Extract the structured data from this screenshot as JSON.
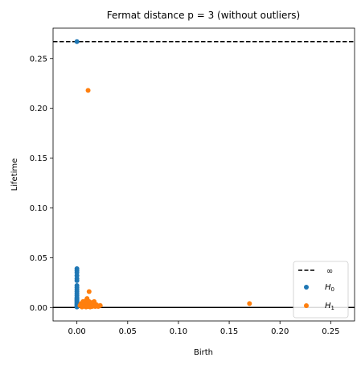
{
  "chart_data": {
    "type": "scatter",
    "title": "Fermat distance p = 3 (without outliers)",
    "xlabel": "Birth",
    "ylabel": "Lifetime",
    "xlim": [
      -0.0235,
      0.2735
    ],
    "ylim": [
      -0.0135,
      0.2805
    ],
    "xticks": [
      "0.00",
      "0.05",
      "0.10",
      "0.15",
      "0.20",
      "0.25"
    ],
    "xtick_values": [
      0,
      0.05,
      0.1,
      0.15,
      0.2,
      0.25
    ],
    "yticks": [
      "0.00",
      "0.05",
      "0.10",
      "0.15",
      "0.20",
      "0.25"
    ],
    "ytick_values": [
      0,
      0.05,
      0.1,
      0.15,
      0.2,
      0.25
    ],
    "infinity_line": {
      "y": 0.267,
      "label": "∞",
      "style": "dashed",
      "color": "#000000"
    },
    "baseline": {
      "y": 0,
      "color": "#000000"
    },
    "legend": {
      "placement": "lower-right"
    },
    "series": [
      {
        "name": "H0",
        "name_base": "H",
        "name_sub": "0",
        "color": "#1f77b4",
        "points": [
          [
            0,
            0.267
          ],
          [
            0,
            0.039
          ],
          [
            0,
            0.037
          ],
          [
            0,
            0.035
          ],
          [
            0,
            0.032
          ],
          [
            0,
            0.029
          ],
          [
            0,
            0.027
          ],
          [
            0,
            0.022
          ],
          [
            0,
            0.02
          ],
          [
            0,
            0.018
          ],
          [
            0,
            0.016
          ],
          [
            0,
            0.014
          ],
          [
            0,
            0.012
          ],
          [
            0,
            0.01
          ],
          [
            0,
            0.009
          ],
          [
            0,
            0.008
          ],
          [
            0,
            0.007
          ],
          [
            0,
            0.006
          ],
          [
            0,
            0.005
          ],
          [
            0,
            0.004
          ],
          [
            0,
            0.003
          ],
          [
            0,
            0.002
          ],
          [
            0,
            0.001
          ],
          [
            0,
            0.0005
          ]
        ]
      },
      {
        "name": "H1",
        "name_base": "H",
        "name_sub": "1",
        "color": "#ff7f0e",
        "points": [
          [
            0.011,
            0.218
          ],
          [
            0.17,
            0.004
          ],
          [
            0.012,
            0.016
          ],
          [
            0.003,
            0.002
          ],
          [
            0.004,
            0.004
          ],
          [
            0.005,
            0.001
          ],
          [
            0.006,
            0.003
          ],
          [
            0.006,
            0.006
          ],
          [
            0.007,
            0.002
          ],
          [
            0.007,
            0.005
          ],
          [
            0.008,
            0.001
          ],
          [
            0.008,
            0.004
          ],
          [
            0.009,
            0.002
          ],
          [
            0.009,
            0.007
          ],
          [
            0.01,
            0.003
          ],
          [
            0.01,
            0.005
          ],
          [
            0.01,
            0.009
          ],
          [
            0.011,
            0.001
          ],
          [
            0.011,
            0.004
          ],
          [
            0.012,
            0.002
          ],
          [
            0.012,
            0.006
          ],
          [
            0.013,
            0.003
          ],
          [
            0.013,
            0.001
          ],
          [
            0.014,
            0.004
          ],
          [
            0.014,
            0.002
          ],
          [
            0.015,
            0.005
          ],
          [
            0.015,
            0.001
          ],
          [
            0.016,
            0.003
          ],
          [
            0.017,
            0.002
          ],
          [
            0.017,
            0.006
          ],
          [
            0.018,
            0.001
          ],
          [
            0.019,
            0.003
          ],
          [
            0.02,
            0.002
          ],
          [
            0.021,
            0.001
          ],
          [
            0.023,
            0.002
          ],
          [
            0.005,
            0.0005
          ],
          [
            0.009,
            0.0005
          ],
          [
            0.013,
            0.0005
          ]
        ]
      }
    ]
  }
}
